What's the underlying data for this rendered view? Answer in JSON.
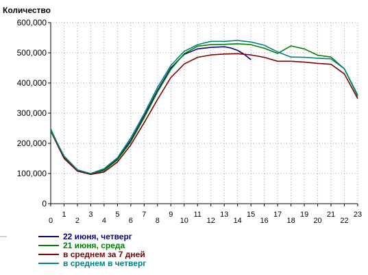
{
  "chart_data": {
    "type": "line",
    "title": "Количество",
    "xlabel": "",
    "ylabel": "",
    "x": [
      0,
      1,
      2,
      3,
      4,
      5,
      6,
      7,
      8,
      9,
      10,
      11,
      12,
      13,
      14,
      15,
      16,
      17,
      18,
      19,
      20,
      21,
      22,
      23
    ],
    "xlim": [
      0,
      23
    ],
    "ylim": [
      0,
      600000
    ],
    "y_ticks": [
      0,
      100000,
      200000,
      300000,
      400000,
      500000,
      600000
    ],
    "y_tick_labels": [
      "0",
      "100,000",
      "200,000",
      "300,000",
      "400,000",
      "500,000",
      "600,000"
    ],
    "x_tick_labels": [
      "0",
      "1",
      "2",
      "3",
      "4",
      "5",
      "6",
      "7",
      "8",
      "9",
      "10",
      "11",
      "12",
      "13",
      "14",
      "15",
      "16",
      "17",
      "18",
      "19",
      "20",
      "21",
      "22",
      "23"
    ],
    "grid": true,
    "legend_position": "bottom-left",
    "series": [
      {
        "name": "22 июня, четверг",
        "color": "#000080",
        "x": [
          0,
          1,
          2,
          3,
          4,
          5,
          6,
          7,
          8,
          9,
          10,
          11,
          12,
          13,
          13.5,
          14,
          14.5,
          15
        ],
        "values": [
          245000,
          155000,
          112000,
          98000,
          112000,
          148000,
          210000,
          290000,
          375000,
          450000,
          495000,
          513000,
          518000,
          520000,
          516000,
          508000,
          495000,
          477000
        ]
      },
      {
        "name": "21 июня, среда",
        "color": "#008000",
        "x": [
          0,
          1,
          2,
          3,
          4,
          5,
          6,
          7,
          8,
          9,
          10,
          11,
          12,
          13,
          14,
          15,
          16,
          17,
          18,
          19,
          20,
          21,
          22,
          23
        ],
        "values": [
          248000,
          152000,
          108000,
          97000,
          110000,
          145000,
          205000,
          285000,
          370000,
          445000,
          497000,
          522000,
          527000,
          528000,
          530000,
          527000,
          515000,
          498000,
          523000,
          513000,
          492000,
          486000,
          447000,
          356000
        ]
      },
      {
        "name": "в среднем за 7 дней",
        "color": "#800000",
        "x": [
          0,
          1,
          2,
          3,
          4,
          5,
          6,
          7,
          8,
          9,
          10,
          11,
          12,
          13,
          14,
          15,
          16,
          17,
          18,
          19,
          20,
          21,
          22,
          23
        ],
        "values": [
          240000,
          150000,
          108000,
          97000,
          105000,
          138000,
          195000,
          268000,
          345000,
          418000,
          463000,
          485000,
          493000,
          496000,
          497000,
          493000,
          485000,
          472000,
          472000,
          469000,
          465000,
          462000,
          430000,
          348000
        ]
      },
      {
        "name": "в среднем в четверг",
        "color": "#008080",
        "x": [
          0,
          1,
          2,
          3,
          4,
          5,
          6,
          7,
          8,
          9,
          10,
          11,
          12,
          13,
          14,
          15,
          16,
          17,
          18,
          19,
          20,
          21,
          22,
          23
        ],
        "values": [
          242000,
          158000,
          112000,
          100000,
          116000,
          152000,
          218000,
          298000,
          385000,
          458000,
          505000,
          527000,
          538000,
          538000,
          541000,
          536000,
          525000,
          503000,
          486000,
          485000,
          482000,
          480000,
          447000,
          360000
        ]
      }
    ]
  }
}
